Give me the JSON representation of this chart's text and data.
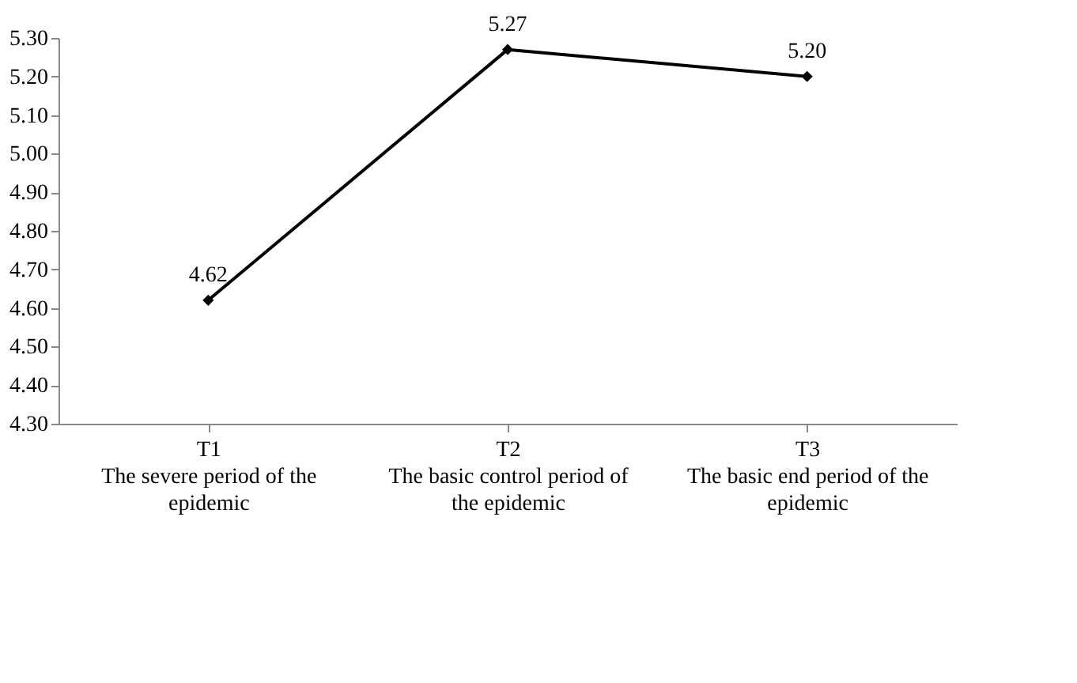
{
  "chart_data": {
    "type": "line",
    "categories": [
      "T1\nThe severe period of the\nepidemic",
      "T2\nThe basic control period of\nthe epidemic",
      "T3\nThe basic end period of the\nepidemic"
    ],
    "series": [
      {
        "color": "#000000",
        "values": [
          4.62,
          5.27,
          5.2
        ]
      }
    ],
    "ylim": [
      4.3,
      5.3
    ],
    "yticks": [
      {
        "value": 4.3,
        "label": "4.30"
      },
      {
        "value": 4.4,
        "label": "4.40"
      },
      {
        "value": 4.5,
        "label": "4.50"
      },
      {
        "value": 4.6,
        "label": "4.60"
      },
      {
        "value": 4.7,
        "label": "4.70"
      },
      {
        "value": 4.8,
        "label": "4.80"
      },
      {
        "value": 4.9,
        "label": "4.90"
      },
      {
        "value": 5.0,
        "label": "5.00"
      },
      {
        "value": 5.1,
        "label": "5.10"
      },
      {
        "value": 5.2,
        "label": "5.20"
      },
      {
        "value": 5.3,
        "label": "5.30"
      }
    ],
    "value_labels": [
      "4.62",
      "5.27",
      "5.20"
    ],
    "marker": "diamond",
    "line_style": "solid",
    "grid": false
  }
}
